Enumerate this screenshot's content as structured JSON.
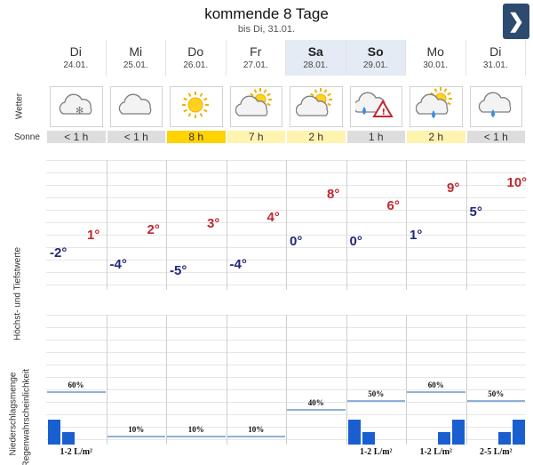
{
  "header": {
    "title": "kommende 8 Tage",
    "subtitle": "bis Di, 31.01.",
    "next_label": "❯"
  },
  "labels": {
    "weather": "Wetter",
    "sun": "Sonne",
    "temps": "Höchst- und Tiefstwerte",
    "precip": "Niederschlagsmenge",
    "precip_prob": "Regenwahrscheinlichkeit"
  },
  "days": [
    {
      "name": "Di",
      "date": "24.01.",
      "weekend": false,
      "weather_icon": "cloud-snow-icon",
      "sun": "< 1 h",
      "sun_hours": 0.5,
      "max": "1°",
      "min": "-2°",
      "max_val": 1,
      "min_val": -2,
      "prob": "",
      "prob_val": null,
      "amount": "1-2 L/m²",
      "bars": [
        2,
        1
      ]
    },
    {
      "name": "Mi",
      "date": "25.01.",
      "weekend": false,
      "weather_icon": "cloud-icon",
      "sun": "< 1 h",
      "sun_hours": 0.5,
      "max": "2°",
      "min": "-4°",
      "max_val": 2,
      "min_val": -4,
      "prob": "10%",
      "prob_val": 10,
      "amount": "",
      "bars": []
    },
    {
      "name": "Do",
      "date": "26.01.",
      "weekend": false,
      "weather_icon": "sun-icon",
      "sun": "8 h",
      "sun_hours": 8,
      "max": "3°",
      "min": "-5°",
      "max_val": 3,
      "min_val": -5,
      "prob": "10%",
      "prob_val": 10,
      "amount": "",
      "bars": []
    },
    {
      "name": "Fr",
      "date": "27.01.",
      "weekend": false,
      "weather_icon": "partly-sunny-icon",
      "sun": "7 h",
      "sun_hours": 7,
      "max": "4°",
      "min": "-4°",
      "max_val": 4,
      "min_val": -4,
      "prob": "10%",
      "prob_val": 10,
      "amount": "",
      "bars": []
    },
    {
      "name": "Sa",
      "date": "28.01.",
      "weekend": true,
      "weather_icon": "partly-sunny-icon",
      "sun": "2 h",
      "sun_hours": 2,
      "max": "8°",
      "min": "0°",
      "max_val": 8,
      "min_val": 0,
      "prob": "40%",
      "prob_val": 40,
      "amount": "",
      "bars": []
    },
    {
      "name": "So",
      "date": "29.01.",
      "weekend": true,
      "weather_icon": "rain-warning-icon",
      "sun": "1 h",
      "sun_hours": 1,
      "max": "6°",
      "min": "0°",
      "max_val": 6,
      "min_val": 0,
      "prob": "50%",
      "prob_val": 50,
      "amount": "1-2 L/m²",
      "bars": [
        2,
        1
      ]
    },
    {
      "name": "Mo",
      "date": "30.01.",
      "weekend": false,
      "weather_icon": "sun-rain-icon",
      "sun": "2 h",
      "sun_hours": 2,
      "max": "9°",
      "min": "1°",
      "max_val": 9,
      "min_val": 1,
      "prob": "60%",
      "prob_val": 60,
      "amount": "1-2 L/m²",
      "bars": [
        1,
        2
      ]
    },
    {
      "name": "Di",
      "date": "31.01.",
      "weekend": false,
      "weather_icon": "cloud-rain-icon",
      "sun": "< 1 h",
      "sun_hours": 0.5,
      "max": "10°",
      "min": "5°",
      "max_val": 10,
      "min_val": 5,
      "prob": "50%",
      "prob_val": 50,
      "amount": "2-5 L/m²",
      "bars": [
        1,
        2
      ]
    }
  ],
  "day0_prob": "60%",
  "day0_prob_val": 60,
  "colors": {
    "max_temp": "#c0282f",
    "min_temp": "#22287a",
    "bar": "#1a5fd0",
    "sun_strong": "#ffd200",
    "sun_medium": "#fff3b0",
    "sun_weak": "#dddddd",
    "weekend": "#e4ebf4"
  }
}
